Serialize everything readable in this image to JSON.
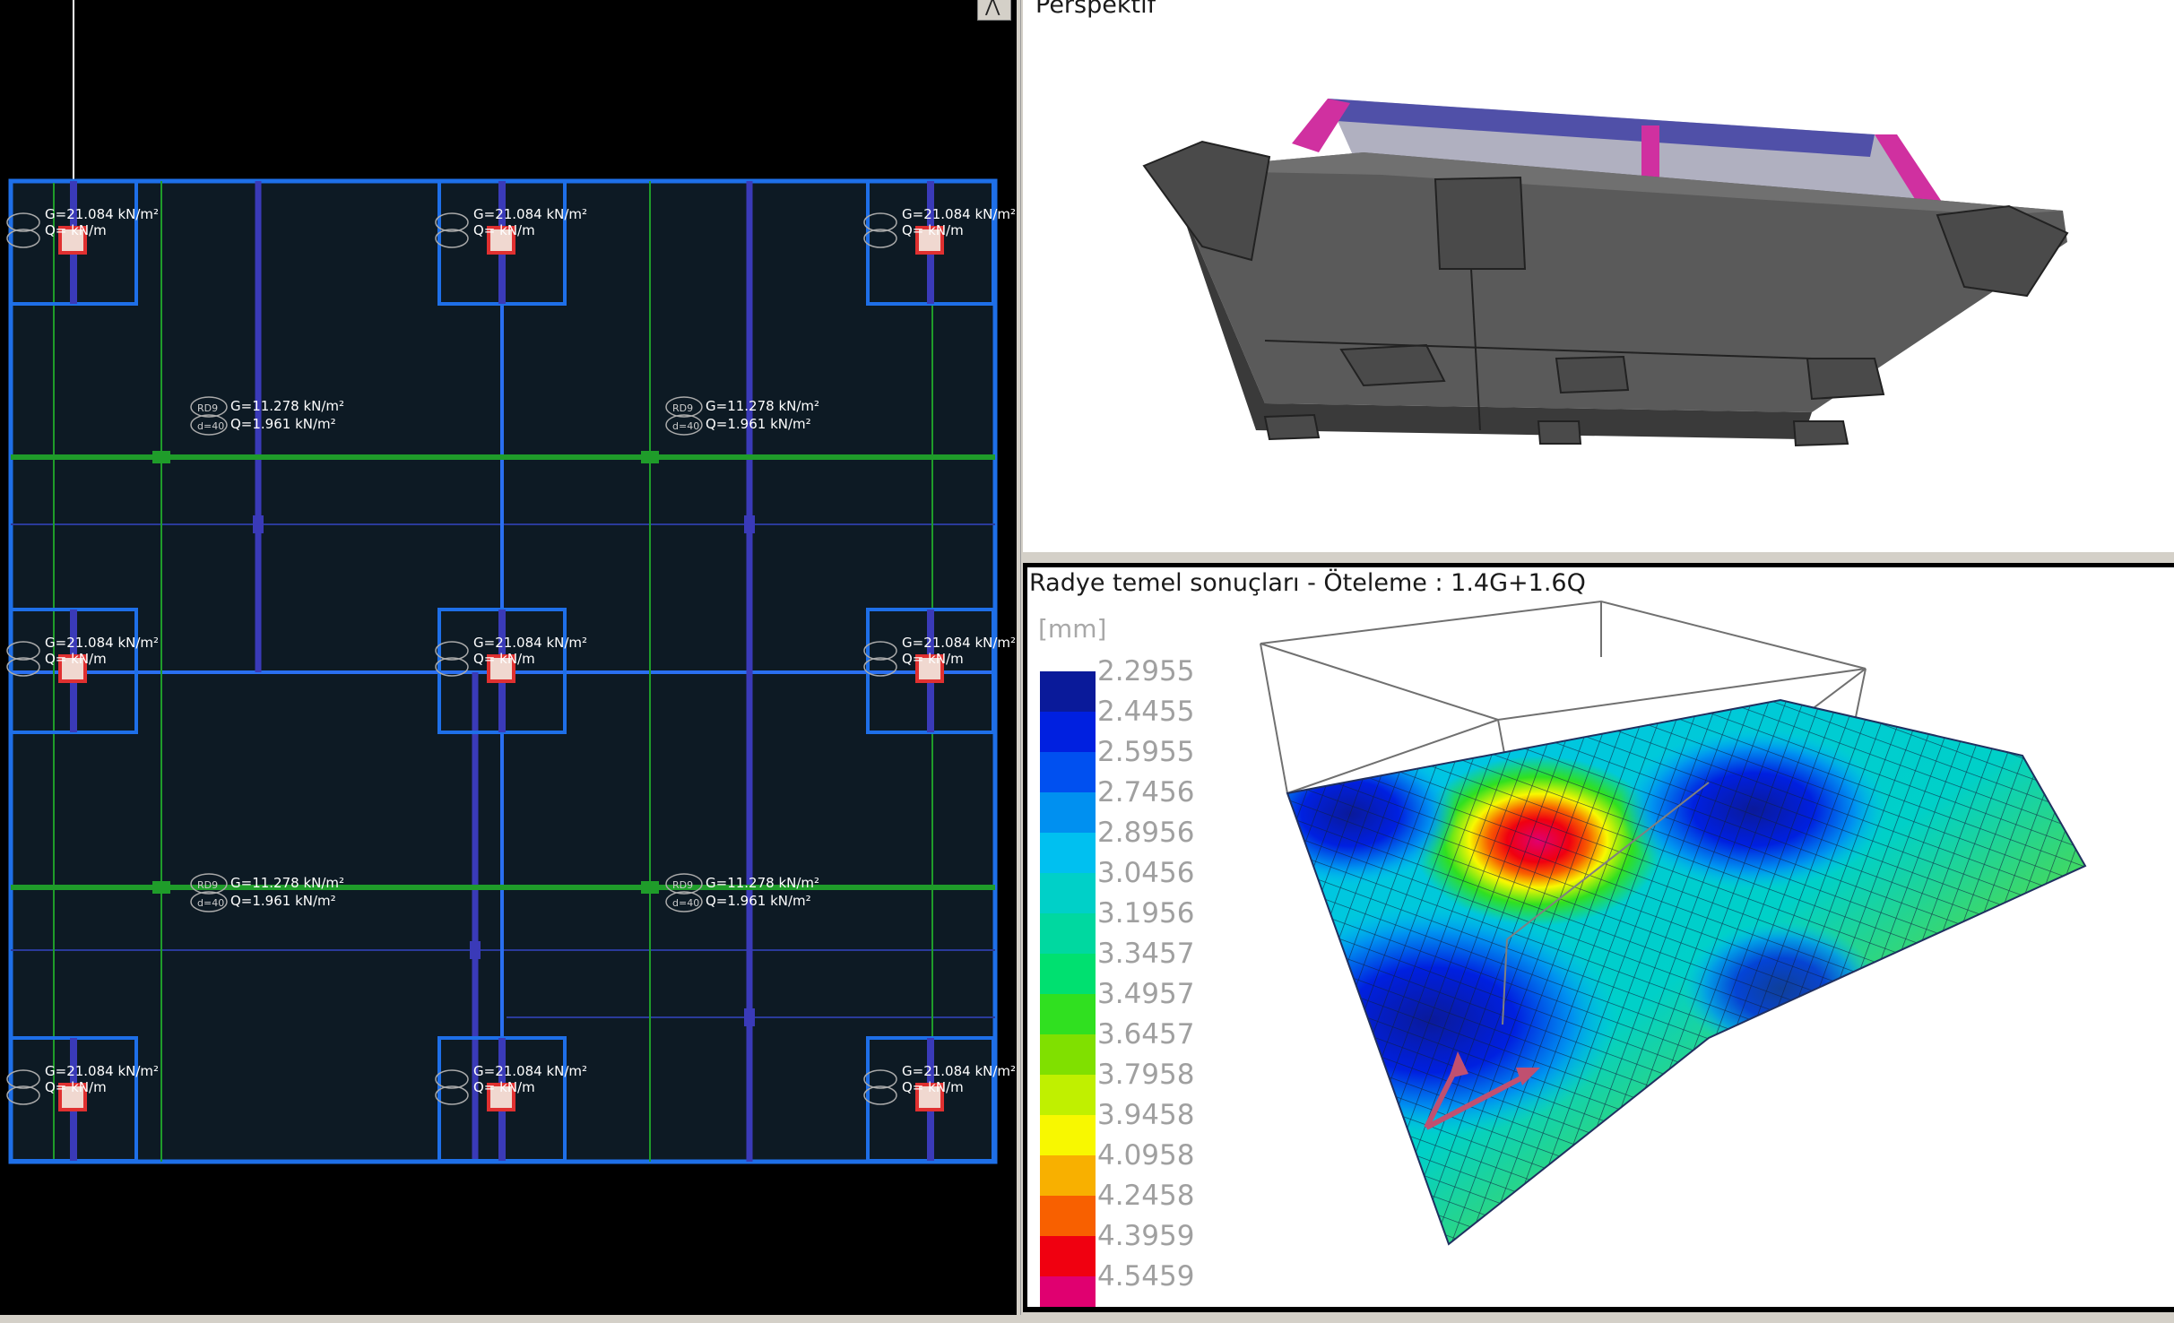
{
  "plan": {
    "pier_label_top": "G=21.084 kN/m²",
    "pier_label_bot": "Q=  kN/m",
    "panel_label_g": "G=11.278 kN/m²",
    "panel_label_q": "Q=1.961 kN/m²",
    "tag_a": "RD9",
    "tag_b": "d=40"
  },
  "perspective": {
    "title": "Perspektif"
  },
  "results": {
    "title": "Radye temel sonuçları - Öteleme : 1.4G+1.6Q",
    "unit": "[mm]",
    "legend": [
      {
        "value": "2.2955",
        "color": "#0a1a9a"
      },
      {
        "value": "2.4455",
        "color": "#0020e0"
      },
      {
        "value": "2.5955",
        "color": "#0050f0"
      },
      {
        "value": "2.7456",
        "color": "#0090f0"
      },
      {
        "value": "2.8956",
        "color": "#00c0f0"
      },
      {
        "value": "3.0456",
        "color": "#00d0c8"
      },
      {
        "value": "3.1956",
        "color": "#00d8a0"
      },
      {
        "value": "3.3457",
        "color": "#00e070"
      },
      {
        "value": "3.4957",
        "color": "#30e020"
      },
      {
        "value": "3.6457",
        "color": "#80e000"
      },
      {
        "value": "3.7958",
        "color": "#c0f000"
      },
      {
        "value": "3.9458",
        "color": "#f8f800"
      },
      {
        "value": "4.0958",
        "color": "#f8b000"
      },
      {
        "value": "4.2458",
        "color": "#f86000"
      },
      {
        "value": "4.3959",
        "color": "#f00010"
      },
      {
        "value": "4.5459",
        "color": "#e00070"
      }
    ]
  }
}
